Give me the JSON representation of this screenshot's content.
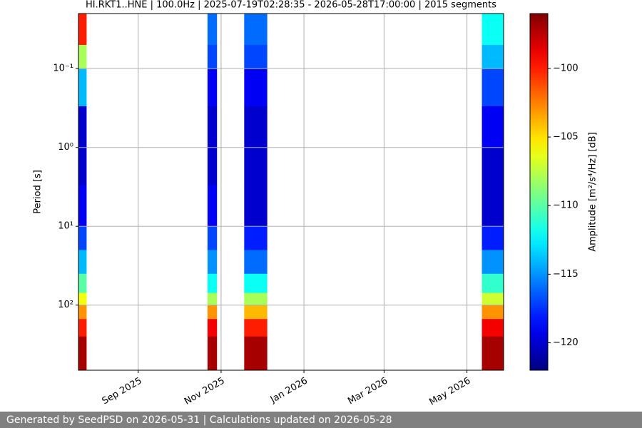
{
  "chart_data": {
    "type": "spectrogram",
    "title": "HI.RKT1..HNE | 100.0Hz | 2025-07-19T02:28:35 - 2026-05-28T17:00:00 | 2015 segments",
    "y_label": "Period [s]",
    "log_y": true,
    "y_inverted": true,
    "grid": true,
    "xlim": [
      "2025-07-19",
      "2026-05-28"
    ],
    "xticks": [
      {
        "value": "2025-09-01",
        "label": "Sep 2025"
      },
      {
        "value": "2025-11-01",
        "label": "Nov 2025"
      },
      {
        "value": "2026-01-01",
        "label": "Jan 2026"
      },
      {
        "value": "2026-03-01",
        "label": "Mar 2026"
      },
      {
        "value": "2026-05-01",
        "label": "May 2026"
      }
    ],
    "ylim": [
      0.02,
      670
    ],
    "yticks": [
      {
        "value": 0.1,
        "label": "10⁻¹"
      },
      {
        "value": 1,
        "label": "10⁰"
      },
      {
        "value": 10,
        "label": "10¹"
      },
      {
        "value": 100,
        "label": "10²"
      }
    ],
    "period_bins": [
      0.02,
      0.05,
      0.1,
      0.3,
      1,
      3,
      10,
      20,
      40,
      70,
      100,
      150,
      250,
      670
    ],
    "segments": [
      {
        "start": "2025-07-19",
        "end": "2025-07-25",
        "values": [
          -100,
          -108,
          -114,
          -120,
          -120,
          -119,
          -117,
          -114,
          -110,
          -106,
          -103,
          -100,
          -97
        ]
      },
      {
        "start": "2025-10-22",
        "end": "2025-10-29",
        "values": [
          -116,
          -117,
          -119,
          -120,
          -120,
          -119,
          -117,
          -115,
          -112,
          -108,
          -103,
          -99,
          -97
        ]
      },
      {
        "start": "2025-11-18",
        "end": "2025-12-05",
        "values": [
          -116,
          -117,
          -119,
          -120,
          -120,
          -120,
          -118,
          -116,
          -112,
          -108,
          -104,
          -100,
          -97
        ]
      },
      {
        "start": "2026-05-12",
        "end": "2026-05-28",
        "values": [
          -112,
          -114,
          -117,
          -119,
          -120,
          -120,
          -118,
          -115,
          -111,
          -107,
          -103,
          -99,
          -97
        ]
      }
    ],
    "colorbar": {
      "label": "Amplitude [m²/s⁴/Hz] [dB]",
      "colormap": "jet",
      "clim": [
        -122,
        -96
      ],
      "ticks": [
        {
          "value": -100,
          "label": "−100"
        },
        {
          "value": -105,
          "label": "−105"
        },
        {
          "value": -110,
          "label": "−110"
        },
        {
          "value": -115,
          "label": "−115"
        },
        {
          "value": -120,
          "label": "−120"
        }
      ]
    }
  },
  "footer": "Generated by SeedPSD on 2026-05-31 | Calculations updated on 2026-05-28"
}
